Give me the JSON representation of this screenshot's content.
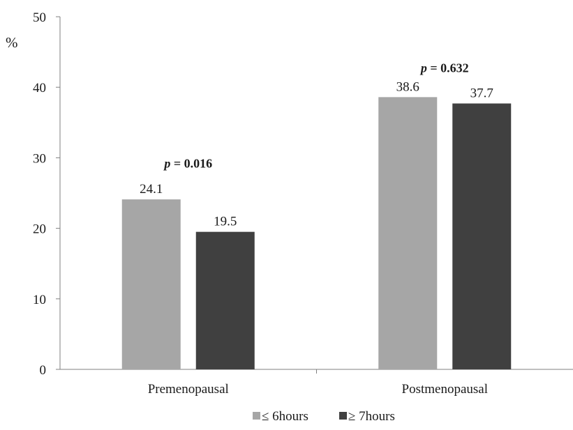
{
  "chart_data": {
    "type": "bar",
    "categories": [
      "Premenopausal",
      "Postmenopausal"
    ],
    "series": [
      {
        "name": "≤ 6hours",
        "values": [
          24.1,
          38.6
        ],
        "color": "#a6a6a6"
      },
      {
        "name": "≥ 7hours",
        "values": [
          19.5,
          37.7
        ],
        "color": "#404040"
      }
    ],
    "data_labels": [
      [
        "24.1",
        "38.6"
      ],
      [
        "19.5",
        "37.7"
      ]
    ],
    "ylabel": "%",
    "xlabel": "",
    "ylim": [
      0,
      50
    ],
    "yticks": [
      0,
      10,
      20,
      30,
      40,
      50
    ],
    "grid": false,
    "legend_position": "bottom",
    "annotations": [
      {
        "category": "Premenopausal",
        "p_symbol": "p",
        "p_value": " = 0.016"
      },
      {
        "category": "Postmenopausal",
        "p_symbol": "p",
        "p_value": " = 0.632"
      }
    ]
  }
}
